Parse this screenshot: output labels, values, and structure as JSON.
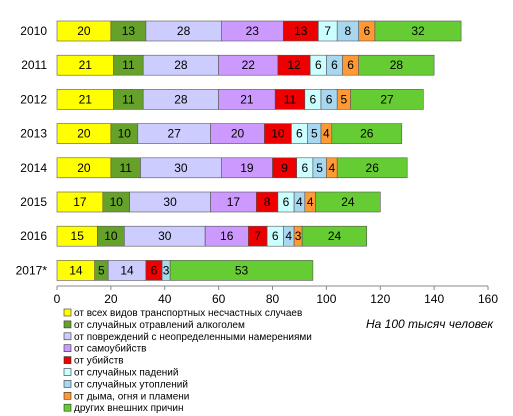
{
  "chart_data": {
    "type": "bar",
    "orientation": "horizontal",
    "stacked": true,
    "categories": [
      "2010",
      "2011",
      "2012",
      "2013",
      "2014",
      "2015",
      "2016",
      "2017*"
    ],
    "series": [
      {
        "name": "от всех видов транспортных несчастных случаев",
        "color": "#FFFF00",
        "values": [
          20,
          21,
          21,
          20,
          20,
          17,
          15,
          14
        ]
      },
      {
        "name": "от случайных отравлений алкоголем",
        "color": "#66A22A",
        "values": [
          13,
          11,
          11,
          10,
          11,
          10,
          10,
          5
        ]
      },
      {
        "name": "от повреждений с неопределенными  намерениями",
        "color": "#CCCCFF",
        "values": [
          28,
          28,
          28,
          27,
          30,
          30,
          30,
          14
        ]
      },
      {
        "name": "от самоубийств",
        "color": "#CC99FF",
        "values": [
          23,
          22,
          21,
          20,
          19,
          17,
          16,
          0
        ]
      },
      {
        "name": "от убийств",
        "color": "#EE0000",
        "values": [
          13,
          12,
          11,
          10,
          9,
          8,
          7,
          6
        ]
      },
      {
        "name": "от случайных падений",
        "color": "#CCFFFF",
        "values": [
          7,
          6,
          6,
          6,
          6,
          6,
          6,
          0
        ]
      },
      {
        "name": "от случайных утоплений",
        "color": "#A8D8F0",
        "values": [
          8,
          6,
          6,
          5,
          5,
          4,
          4,
          3
        ]
      },
      {
        "name": "от дыма, огня и пламени",
        "color": "#FF9933",
        "values": [
          6,
          6,
          5,
          4,
          4,
          4,
          3,
          0
        ]
      },
      {
        "name": "других внешних причин",
        "color": "#66CC33",
        "values": [
          32,
          28,
          27,
          26,
          26,
          24,
          24,
          53
        ]
      }
    ],
    "data_labels": [
      [
        "20",
        "13",
        "28",
        "23",
        "13",
        "7",
        "8",
        "6",
        "32"
      ],
      [
        "21",
        "11",
        "28",
        "22",
        "12",
        "6",
        "6",
        "6",
        "28"
      ],
      [
        "21",
        "11",
        "28",
        "21",
        "11",
        "6",
        "6",
        "5",
        "27"
      ],
      [
        "20",
        "10",
        "27",
        "20",
        "10",
        "6",
        "5",
        "4",
        "26"
      ],
      [
        "20",
        "11",
        "30",
        "19",
        "9",
        "6",
        "5",
        "4",
        "26"
      ],
      [
        "17",
        "10",
        "30",
        "17",
        "8",
        "6",
        "4",
        "4",
        "24"
      ],
      [
        "15",
        "10",
        "30",
        "16",
        "7",
        "6",
        "4",
        "3",
        "24"
      ],
      [
        "14",
        "5",
        "14",
        "",
        "6",
        "",
        "3",
        "",
        "53"
      ]
    ],
    "xlim": [
      0,
      160
    ],
    "xticks": [
      "0",
      "20",
      "40",
      "60",
      "80",
      "100",
      "120",
      "140",
      "160"
    ],
    "grid": false,
    "legend_position": "bottom-left",
    "annotation": "На 100 тысяч человек"
  }
}
